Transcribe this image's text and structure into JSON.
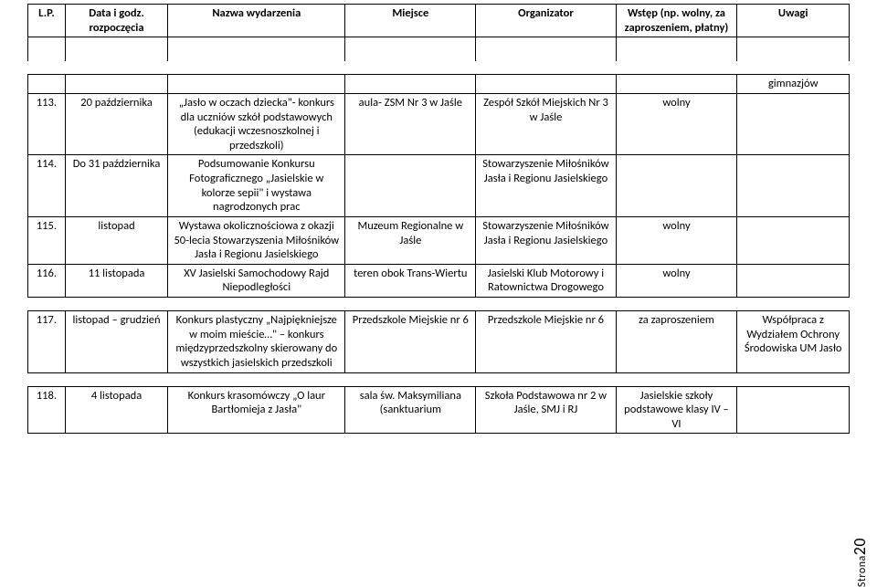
{
  "header": {
    "lp": "L.P.",
    "date": "Data i godz. rozpoczęcia",
    "name": "Nazwa wydarzenia",
    "place": "Miejsce",
    "org": "Organizator",
    "entry": "Wstęp (np. wolny, za zaproszeniem, płatny)",
    "notes": "Uwagi"
  },
  "topnote": "gimnazjów",
  "rows": [
    {
      "lp": "113.",
      "date": "20 października",
      "name": "„Jasło w oczach dziecka\"- konkurs dla uczniów szkół podstawowych (edukacji wczesnoszkolnej  i przedszkoli)",
      "place": "aula- ZSM Nr 3 w Jaśle",
      "org": "Zespół Szkół Miejskich Nr 3 w Jaśle",
      "entry": "wolny",
      "notes": ""
    },
    {
      "lp": "114.",
      "date": "Do 31 października",
      "name": "Podsumowanie Konkursu Fotograficznego „Jasielskie w kolorze sepii\" i wystawa nagrodzonych prac",
      "place": "",
      "org": "Stowarzyszenie Miłośników Jasła i Regionu Jasielskiego",
      "entry": "",
      "notes": ""
    },
    {
      "lp": "115.",
      "date": "listopad",
      "name": "Wystawa okolicznościowa z okazji 50-lecia Stowarzyszenia Miłośników Jasła i Regionu Jasielskiego",
      "place": "Muzeum Regionalne w Jaśle",
      "org": "Stowarzyszenie Miłośników Jasła i Regionu Jasielskiego",
      "entry": "wolny",
      "notes": ""
    },
    {
      "lp": "116.",
      "date": "11 listopada",
      "name": "XV Jasielski Samochodowy Rajd Niepodległości",
      "place": "teren obok Trans-Wiertu",
      "org": "Jasielski Klub Motorowy i Ratownictwa Drogowego",
      "entry": "wolny",
      "notes": ""
    },
    {
      "lp": "117.",
      "date": "listopad – grudzień",
      "name": "Konkurs plastyczny „Najpiękniejsze w moim mieście…\" – konkurs międzyprzedszkolny skierowany do wszystkich jasielskich przedszkoli",
      "place": "Przedszkole Miejskie nr 6",
      "org": "Przedszkole Miejskie nr 6",
      "entry": "za zaproszeniem",
      "notes": "Współpraca z Wydziałem Ochrony Środowiska UM Jasło"
    },
    {
      "lp": "118.",
      "date": "4 listopada",
      "name": "Konkurs krasomówczy „O laur Bartłomieja z Jasła\"",
      "place": "sala św. Maksymiliana (sanktuarium",
      "org": "Szkoła Podstawowa nr 2 w Jaśle, SMJ i RJ",
      "entry": "Jasielskie szkoły podstawowe klasy IV – VI",
      "notes": ""
    }
  ],
  "footer": {
    "label": "Strona",
    "num": "20"
  }
}
